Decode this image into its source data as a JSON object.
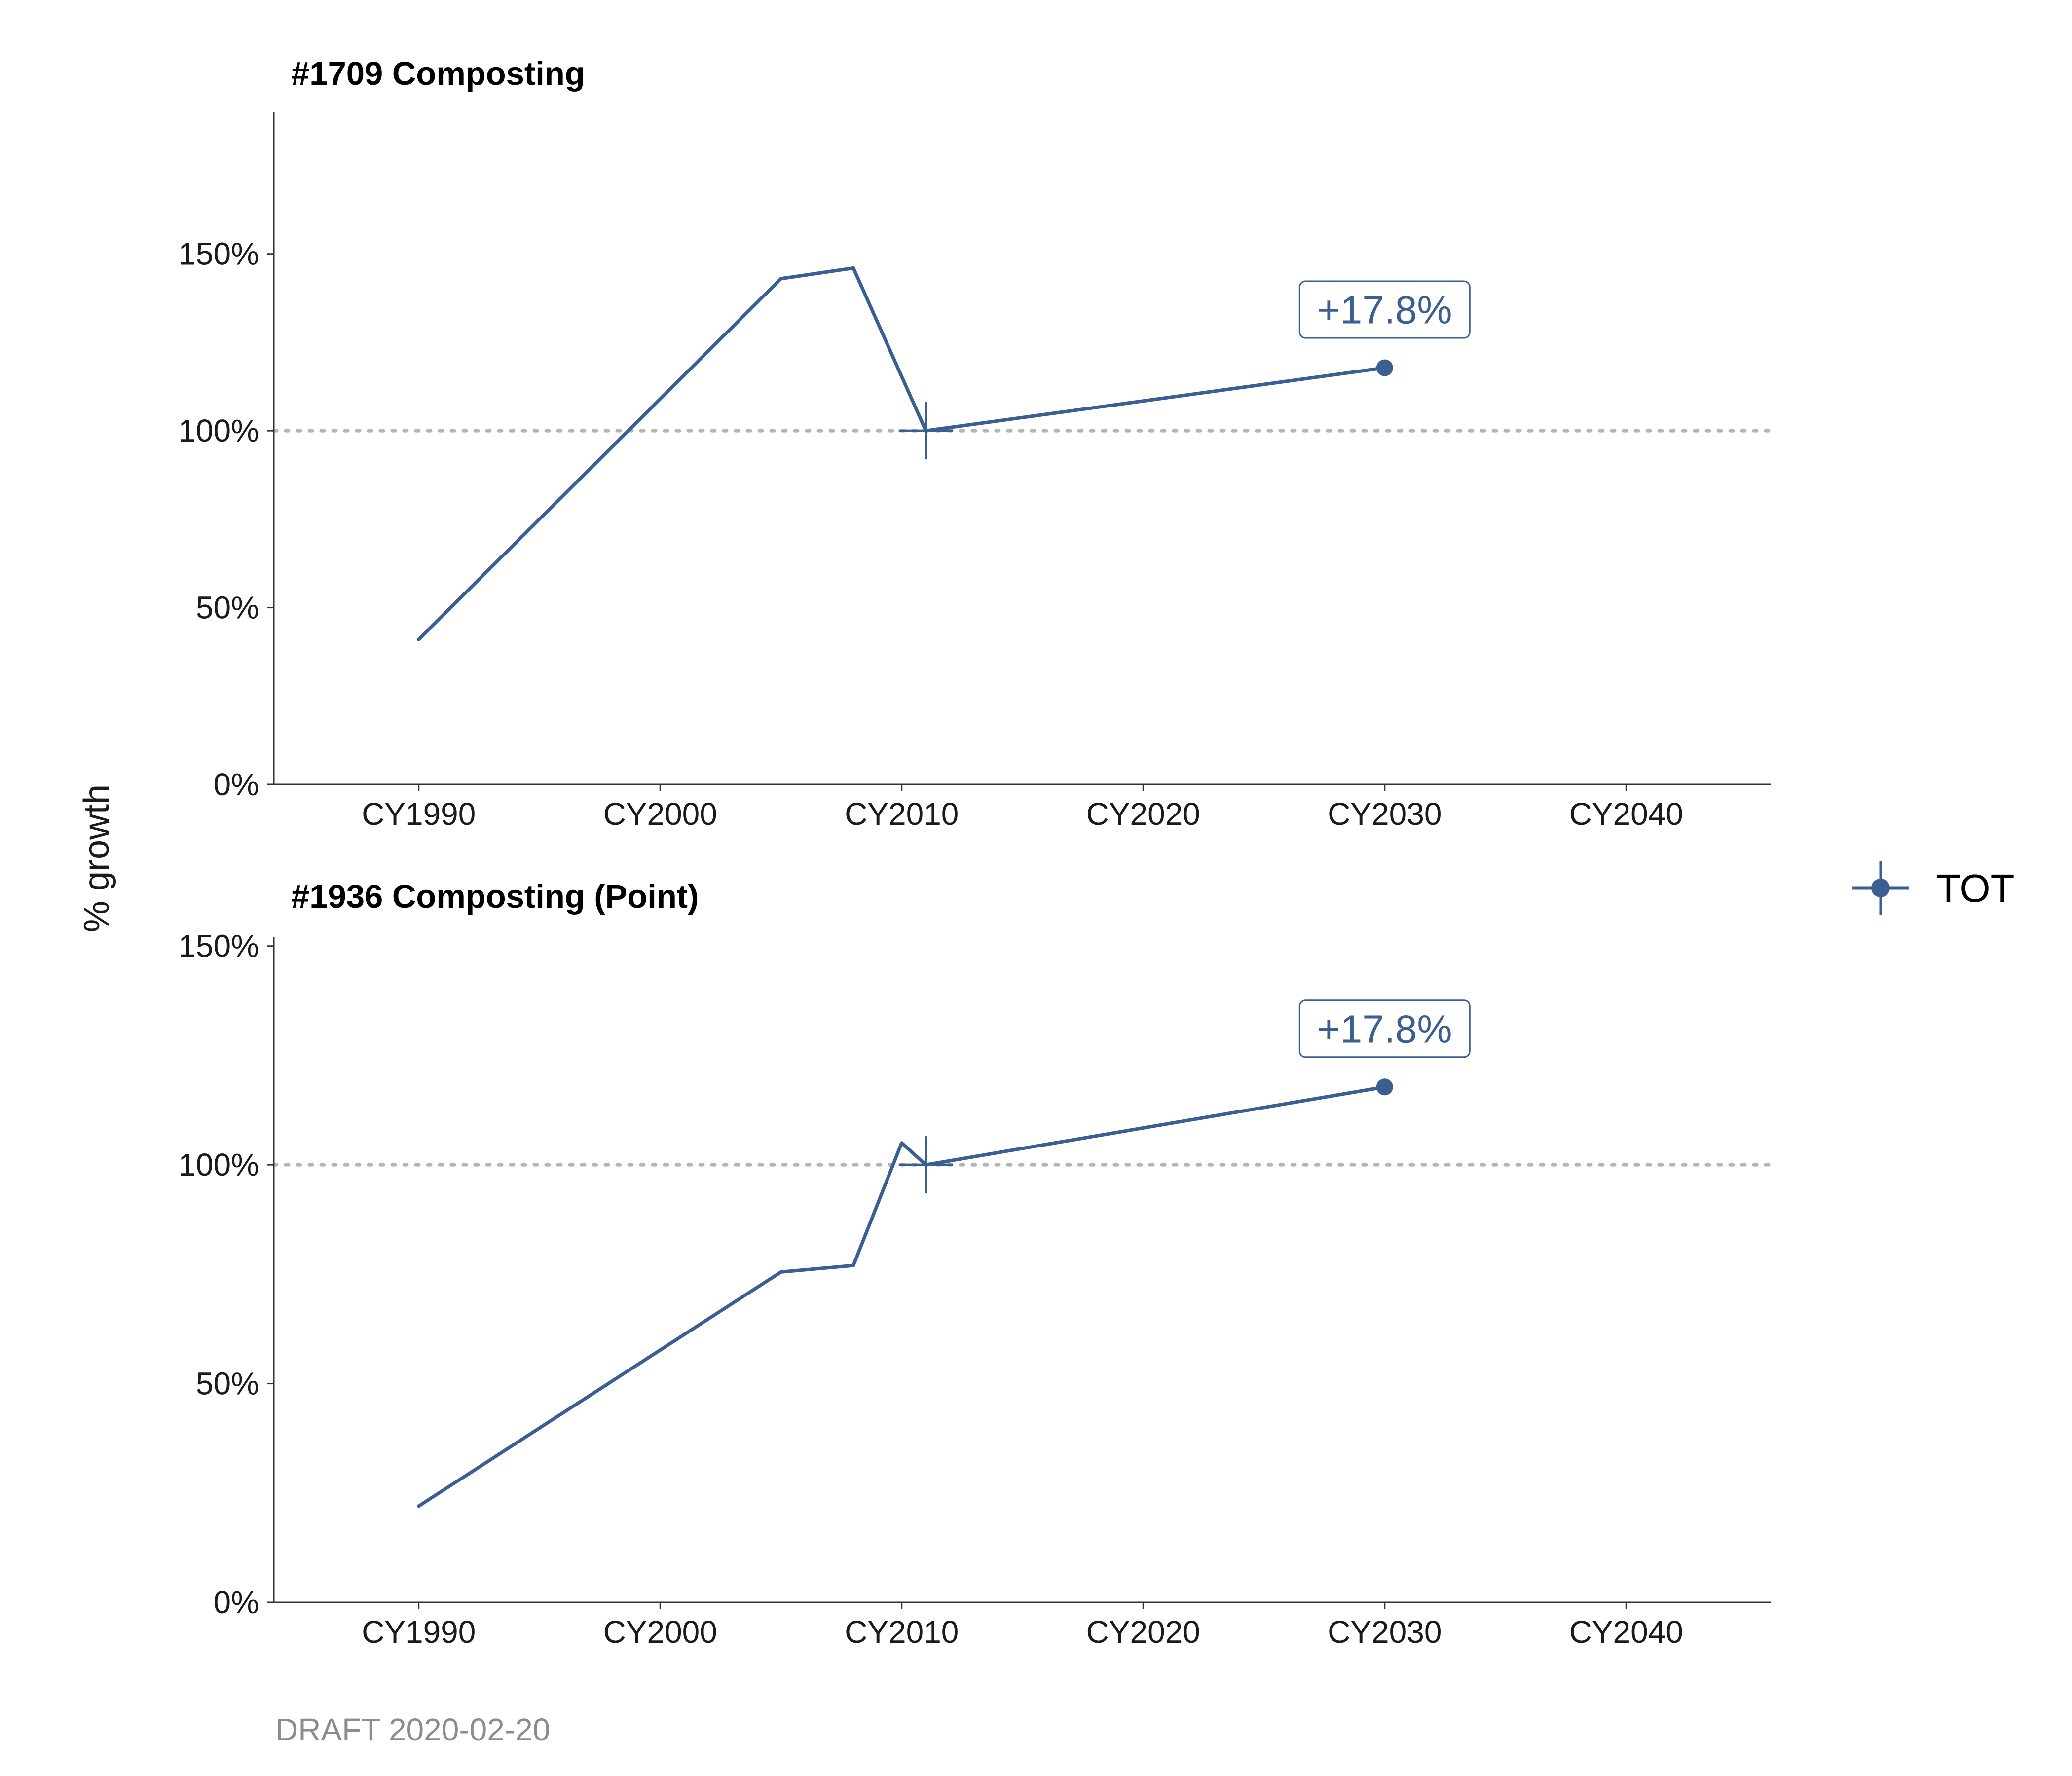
{
  "chart_data": [
    {
      "type": "line",
      "title": "#1709 Composting",
      "ylabel": "% growth",
      "x_tick_labels": [
        "CY1990",
        "CY2000",
        "CY2010",
        "CY2020",
        "CY2030",
        "CY2040"
      ],
      "x_ticks": [
        1990,
        2000,
        2010,
        2020,
        2030,
        2040
      ],
      "xlim": [
        1984,
        2046
      ],
      "y_tick_labels": [
        "0%",
        "50%",
        "100%",
        "150%"
      ],
      "y_ticks": [
        0,
        50,
        100,
        150
      ],
      "ylim": [
        0,
        190
      ],
      "reference_line": 100,
      "series": [
        {
          "name": "TOT",
          "x": [
            1990,
            2005,
            2008,
            2011,
            2030
          ],
          "values": [
            41,
            143,
            146,
            100,
            117.8
          ]
        }
      ],
      "base_marker": {
        "x": 2011,
        "y": 100
      },
      "end_marker": {
        "x": 2030,
        "y": 117.8
      },
      "annotation": {
        "text": "+17.8%",
        "x": 2030,
        "y": 117.8
      }
    },
    {
      "type": "line",
      "title": "#1936 Composting (Point)",
      "ylabel": "% growth",
      "x_tick_labels": [
        "CY1990",
        "CY2000",
        "CY2010",
        "CY2020",
        "CY2030",
        "CY2040"
      ],
      "x_ticks": [
        1990,
        2000,
        2010,
        2020,
        2030,
        2040
      ],
      "xlim": [
        1984,
        2046
      ],
      "y_tick_labels": [
        "0%",
        "50%",
        "100%",
        "150%"
      ],
      "y_ticks": [
        0,
        50,
        100,
        150
      ],
      "ylim": [
        0,
        152
      ],
      "reference_line": 100,
      "series": [
        {
          "name": "TOT",
          "x": [
            1990,
            2005,
            2008,
            2010,
            2011,
            2030
          ],
          "values": [
            22,
            75.5,
            77,
            105,
            100,
            117.8
          ]
        }
      ],
      "base_marker": {
        "x": 2011,
        "y": 100
      },
      "end_marker": {
        "x": 2030,
        "y": 117.8
      },
      "annotation": {
        "text": "+17.8%",
        "x": 2030,
        "y": 117.8
      }
    }
  ],
  "shared": {
    "ylabel": "% growth",
    "legend": {
      "label": "TOT",
      "placement": "right"
    },
    "caption": "DRAFT 2020-02-20"
  },
  "colors": {
    "series": "#3b5f92",
    "reference_line": "#b5b5b5",
    "axis": "#333333",
    "caption": "#8c8c8c"
  }
}
